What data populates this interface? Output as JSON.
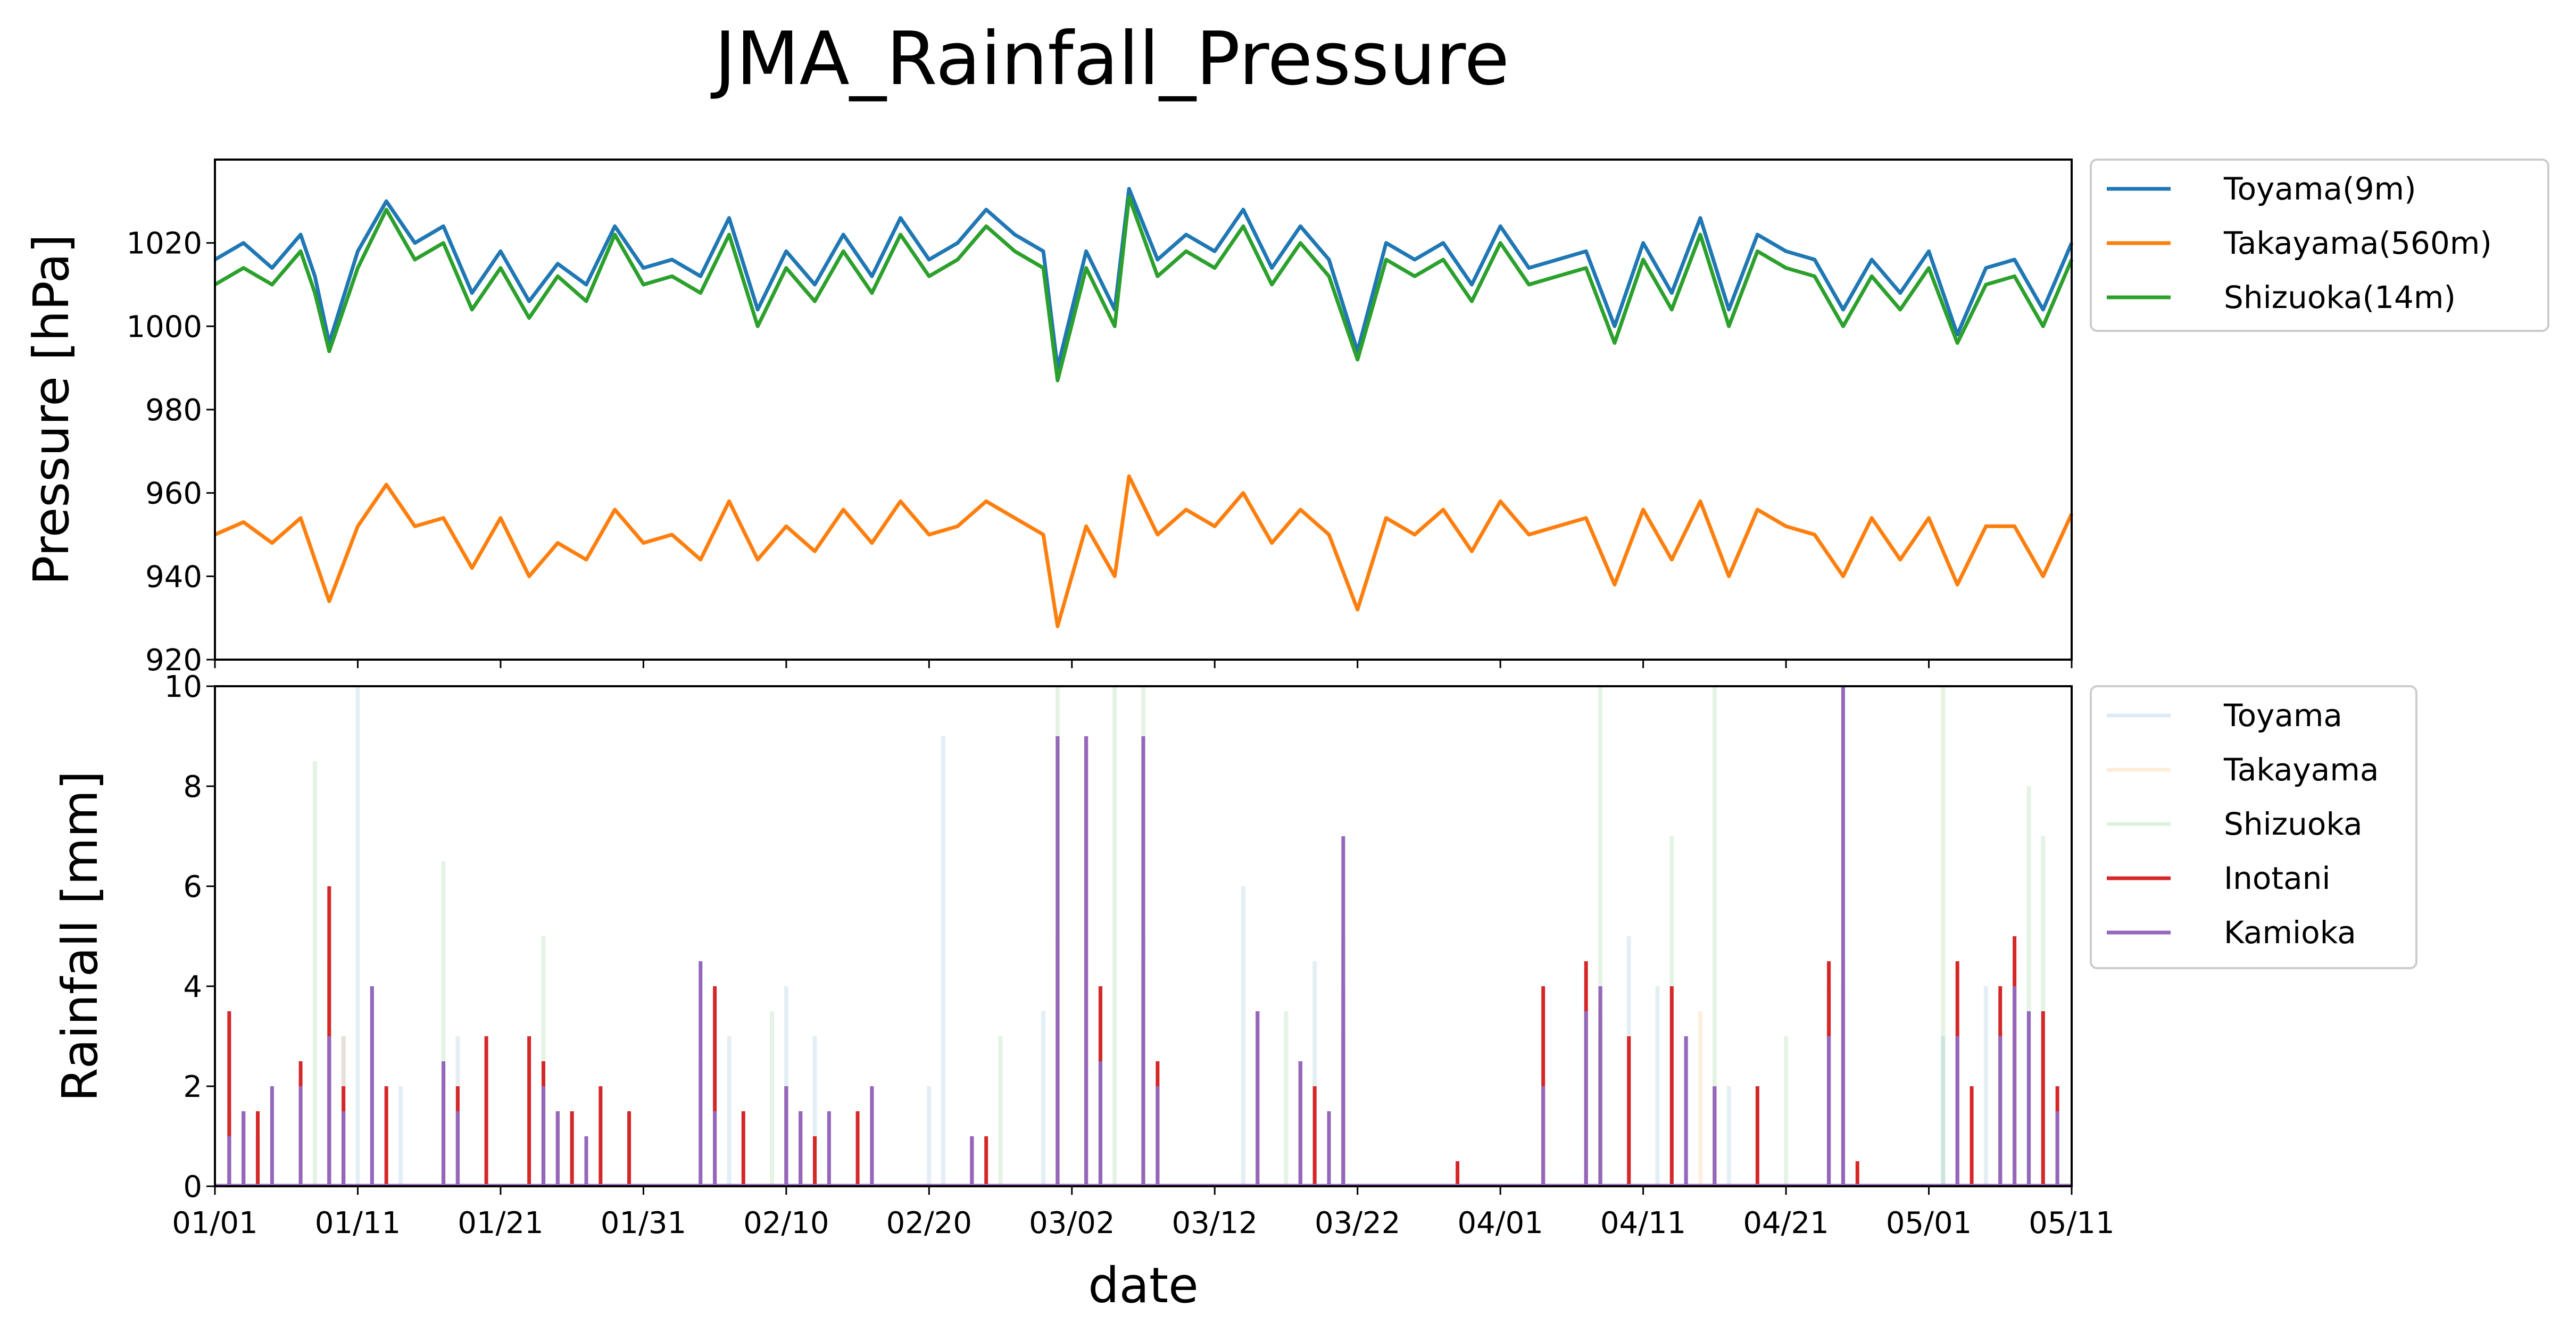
{
  "chart_data": [
    {
      "type": "line",
      "title": "JMA_Rainfall_Pressure",
      "ylabel": "Pressure [hPa]",
      "ylim": [
        920,
        1040
      ],
      "yticks": [
        "920",
        "940",
        "960",
        "980",
        "1000",
        "1020"
      ],
      "x_range": [
        "01/01",
        "05/11"
      ],
      "grid": false,
      "legend_position": "outside-right",
      "series": [
        {
          "name": "Toyama(9m)",
          "color": "#1f77b4",
          "x": [
            "01/01",
            "01/03",
            "01/05",
            "01/07",
            "01/08",
            "01/09",
            "01/11",
            "01/13",
            "01/15",
            "01/17",
            "01/19",
            "01/21",
            "01/23",
            "01/25",
            "01/27",
            "01/29",
            "01/31",
            "02/02",
            "02/04",
            "02/06",
            "02/08",
            "02/10",
            "02/12",
            "02/14",
            "02/16",
            "02/18",
            "02/20",
            "02/22",
            "02/24",
            "02/26",
            "02/28",
            "03/01",
            "03/03",
            "03/05",
            "03/06",
            "03/08",
            "03/10",
            "03/12",
            "03/14",
            "03/16",
            "03/18",
            "03/20",
            "03/22",
            "03/24",
            "03/26",
            "03/28",
            "03/30",
            "04/01",
            "04/03",
            "04/05",
            "04/07",
            "04/09",
            "04/11",
            "04/13",
            "04/15",
            "04/17",
            "04/19",
            "04/21",
            "04/23",
            "04/25",
            "04/27",
            "04/29",
            "05/01",
            "05/03",
            "05/05",
            "05/07",
            "05/09",
            "05/11"
          ],
          "values": [
            1016,
            1020,
            1014,
            1022,
            1012,
            996,
            1018,
            1030,
            1020,
            1024,
            1008,
            1018,
            1006,
            1015,
            1010,
            1024,
            1014,
            1016,
            1012,
            1026,
            1004,
            1018,
            1010,
            1022,
            1012,
            1026,
            1016,
            1020,
            1028,
            1022,
            1018,
            990,
            1018,
            1004,
            1033,
            1016,
            1022,
            1018,
            1028,
            1014,
            1024,
            1016,
            994,
            1020,
            1016,
            1020,
            1010,
            1024,
            1014,
            1016,
            1018,
            1000,
            1020,
            1008,
            1026,
            1004,
            1022,
            1018,
            1016,
            1004,
            1016,
            1008,
            1018,
            998,
            1014,
            1016,
            1004,
            1020
          ]
        },
        {
          "name": "Takayama(560m)",
          "color": "#ff7f0e",
          "x": [
            "01/01",
            "01/03",
            "01/05",
            "01/07",
            "01/08",
            "01/09",
            "01/11",
            "01/13",
            "01/15",
            "01/17",
            "01/19",
            "01/21",
            "01/23",
            "01/25",
            "01/27",
            "01/29",
            "01/31",
            "02/02",
            "02/04",
            "02/06",
            "02/08",
            "02/10",
            "02/12",
            "02/14",
            "02/16",
            "02/18",
            "02/20",
            "02/22",
            "02/24",
            "02/26",
            "02/28",
            "03/01",
            "03/03",
            "03/05",
            "03/06",
            "03/08",
            "03/10",
            "03/12",
            "03/14",
            "03/16",
            "03/18",
            "03/20",
            "03/22",
            "03/24",
            "03/26",
            "03/28",
            "03/30",
            "04/01",
            "04/03",
            "04/05",
            "04/07",
            "04/09",
            "04/11",
            "04/13",
            "04/15",
            "04/17",
            "04/19",
            "04/21",
            "04/23",
            "04/25",
            "04/27",
            "04/29",
            "05/01",
            "05/03",
            "05/05",
            "05/07",
            "05/09",
            "05/11"
          ],
          "values": [
            950,
            953,
            948,
            954,
            944,
            934,
            952,
            962,
            952,
            954,
            942,
            954,
            940,
            948,
            944,
            956,
            948,
            950,
            944,
            958,
            944,
            952,
            946,
            956,
            948,
            958,
            950,
            952,
            958,
            954,
            950,
            928,
            952,
            940,
            964,
            950,
            956,
            952,
            960,
            948,
            956,
            950,
            932,
            954,
            950,
            956,
            946,
            958,
            950,
            952,
            954,
            938,
            956,
            944,
            958,
            940,
            956,
            952,
            950,
            940,
            954,
            944,
            954,
            938,
            952,
            952,
            940,
            955
          ]
        },
        {
          "name": "Shizuoka(14m)",
          "color": "#2ca02c",
          "x": [
            "01/01",
            "01/03",
            "01/05",
            "01/07",
            "01/08",
            "01/09",
            "01/11",
            "01/13",
            "01/15",
            "01/17",
            "01/19",
            "01/21",
            "01/23",
            "01/25",
            "01/27",
            "01/29",
            "01/31",
            "02/02",
            "02/04",
            "02/06",
            "02/08",
            "02/10",
            "02/12",
            "02/14",
            "02/16",
            "02/18",
            "02/20",
            "02/22",
            "02/24",
            "02/26",
            "02/28",
            "03/01",
            "03/03",
            "03/05",
            "03/06",
            "03/08",
            "03/10",
            "03/12",
            "03/14",
            "03/16",
            "03/18",
            "03/20",
            "03/22",
            "03/24",
            "03/26",
            "03/28",
            "03/30",
            "04/01",
            "04/03",
            "04/05",
            "04/07",
            "04/09",
            "04/11",
            "04/13",
            "04/15",
            "04/17",
            "04/19",
            "04/21",
            "04/23",
            "04/25",
            "04/27",
            "04/29",
            "05/01",
            "05/03",
            "05/05",
            "05/07",
            "05/09",
            "05/11"
          ],
          "values": [
            1010,
            1014,
            1010,
            1018,
            1008,
            994,
            1014,
            1028,
            1016,
            1020,
            1004,
            1014,
            1002,
            1012,
            1006,
            1022,
            1010,
            1012,
            1008,
            1022,
            1000,
            1014,
            1006,
            1018,
            1008,
            1022,
            1012,
            1016,
            1024,
            1018,
            1014,
            987,
            1014,
            1000,
            1031,
            1012,
            1018,
            1014,
            1024,
            1010,
            1020,
            1012,
            992,
            1016,
            1012,
            1016,
            1006,
            1020,
            1010,
            1012,
            1014,
            996,
            1016,
            1004,
            1022,
            1000,
            1018,
            1014,
            1012,
            1000,
            1012,
            1004,
            1014,
            996,
            1010,
            1012,
            1000,
            1016
          ]
        }
      ]
    },
    {
      "type": "bar",
      "xlabel": "date",
      "ylabel": "Rainfall [mm]",
      "ylim": [
        0,
        10
      ],
      "yticks": [
        "0",
        "2",
        "4",
        "6",
        "8",
        "10"
      ],
      "x_range": [
        "01/01",
        "05/11"
      ],
      "xticks": [
        "01/01",
        "01/11",
        "01/21",
        "01/31",
        "02/10",
        "02/20",
        "03/02",
        "03/12",
        "03/22",
        "04/01",
        "04/11",
        "04/21",
        "05/01",
        "05/11"
      ],
      "grid": false,
      "legend_position": "outside-right",
      "series": [
        {
          "name": "Toyama",
          "color": "#1f77b4",
          "faded": true,
          "x": [
            "01/02",
            "01/04",
            "01/09",
            "01/10",
            "01/11",
            "01/12",
            "01/14",
            "01/18",
            "01/24",
            "01/26",
            "02/04",
            "02/06",
            "02/10",
            "02/12",
            "02/20",
            "02/21",
            "02/28",
            "03/04",
            "03/07",
            "03/14",
            "03/19",
            "03/21",
            "04/08",
            "04/10",
            "04/12",
            "04/14",
            "04/17",
            "04/24",
            "05/02",
            "05/05",
            "05/08"
          ],
          "values": [
            1.5,
            1.0,
            4.5,
            3.0,
            10,
            4.0,
            2.0,
            3.0,
            2.0,
            1.5,
            2.5,
            3.0,
            4.0,
            3.0,
            2.0,
            9.0,
            3.5,
            4.0,
            5.0,
            6.0,
            4.5,
            3.0,
            3.0,
            5.0,
            4.0,
            3.0,
            2.0,
            4.0,
            3.0,
            4.0,
            3.5
          ]
        },
        {
          "name": "Takayama",
          "color": "#ff7f0e",
          "faded": true,
          "x": [
            "01/10",
            "01/17",
            "03/01",
            "03/07",
            "04/08",
            "04/15",
            "04/25",
            "05/07"
          ],
          "values": [
            3.0,
            2.5,
            5.0,
            4.5,
            4.0,
            3.5,
            4.0,
            4.5
          ]
        },
        {
          "name": "Shizuoka",
          "color": "#2ca02c",
          "faded": true,
          "x": [
            "01/08",
            "01/17",
            "01/24",
            "02/09",
            "02/25",
            "03/01",
            "03/05",
            "03/07",
            "03/17",
            "03/21",
            "04/08",
            "04/13",
            "04/16",
            "04/21",
            "05/02",
            "05/08",
            "05/09"
          ],
          "values": [
            8.5,
            6.5,
            5.0,
            3.5,
            3.0,
            10,
            10,
            10,
            3.5,
            5.0,
            10,
            7.0,
            10,
            3.0,
            10,
            8.0,
            7.0
          ]
        },
        {
          "name": "Inotani",
          "color": "#d62728",
          "x": [
            "01/02",
            "01/03",
            "01/04",
            "01/07",
            "01/09",
            "01/10",
            "01/13",
            "01/17",
            "01/18",
            "01/20",
            "01/23",
            "01/24",
            "01/25",
            "01/26",
            "01/28",
            "01/30",
            "02/05",
            "02/07",
            "02/10",
            "02/11",
            "02/12",
            "02/15",
            "02/16",
            "02/23",
            "02/24",
            "03/01",
            "03/03",
            "03/04",
            "03/07",
            "03/08",
            "03/15",
            "03/18",
            "03/19",
            "03/21",
            "03/29",
            "04/04",
            "04/07",
            "04/08",
            "04/10",
            "04/13",
            "04/16",
            "04/19",
            "04/24",
            "04/25",
            "04/26",
            "05/03",
            "05/04",
            "05/06",
            "05/07",
            "05/09",
            "05/10"
          ],
          "values": [
            3.5,
            1.5,
            1.5,
            2.5,
            6.0,
            2.0,
            2.0,
            2.0,
            2.0,
            3.0,
            3.0,
            2.5,
            1.5,
            1.5,
            2.0,
            1.5,
            4.0,
            1.5,
            2.0,
            1.5,
            1.0,
            1.5,
            2.0,
            1.0,
            1.0,
            9.0,
            9.0,
            4.0,
            7.0,
            2.5,
            3.5,
            2.5,
            2.0,
            4.0,
            0.5,
            4.0,
            4.5,
            3.5,
            3.0,
            4.0,
            2.0,
            2.0,
            4.5,
            4.5,
            0.5,
            4.5,
            2.0,
            4.0,
            5.0,
            3.5,
            2.0
          ]
        },
        {
          "name": "Kamioka",
          "color": "#9467bd",
          "x": [
            "01/02",
            "01/03",
            "01/05",
            "01/07",
            "01/09",
            "01/10",
            "01/12",
            "01/17",
            "01/18",
            "01/24",
            "01/25",
            "01/27",
            "02/04",
            "02/05",
            "02/10",
            "02/11",
            "02/13",
            "02/16",
            "02/23",
            "03/01",
            "03/03",
            "03/04",
            "03/07",
            "03/08",
            "03/15",
            "03/18",
            "03/20",
            "03/21",
            "04/04",
            "04/07",
            "04/08",
            "04/14",
            "04/16",
            "04/24",
            "04/25",
            "05/03",
            "05/06",
            "05/07",
            "05/08",
            "05/10"
          ],
          "values": [
            1.0,
            1.5,
            2.0,
            2.0,
            3.0,
            1.5,
            4.0,
            2.5,
            1.5,
            2.0,
            1.5,
            1.0,
            4.5,
            1.5,
            2.0,
            1.5,
            1.5,
            2.0,
            1.0,
            9.0,
            9.0,
            2.5,
            9.0,
            2.0,
            3.5,
            2.5,
            1.5,
            7.0,
            2.0,
            3.5,
            4.0,
            3.0,
            2.0,
            3.0,
            10,
            3.0,
            3.0,
            4.0,
            3.5,
            1.5
          ]
        }
      ]
    }
  ]
}
